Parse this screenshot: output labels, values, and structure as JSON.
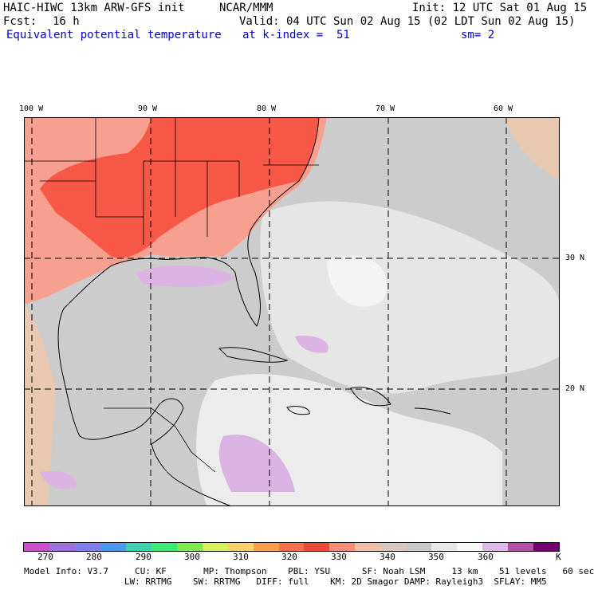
{
  "header": {
    "model": "HAIC-HIWC 13km ARW-GFS init",
    "org": "NCAR/MMM",
    "init": "Init: 12 UTC Sat 01 Aug 15",
    "fcst_label": "Fcst:",
    "fcst_value": "16 h",
    "valid": "Valid: 04 UTC Sun 02 Aug 15 (02 LDT Sun 02 Aug 15)",
    "field": "Equivalent potential temperature",
    "level": "at k-index =  51",
    "smooth": "sm= 2"
  },
  "map": {
    "lon_labels": [
      "100 W",
      "90 W",
      "80 W",
      "70 W",
      "60 W"
    ],
    "lat_labels": [
      "30 N",
      "20 N"
    ],
    "colors": {
      "background": "#cccccc",
      "warm": "#f8a090",
      "hot": "#f85848",
      "light": "#ececec",
      "lavender": "#dcb4e4",
      "tan": "#e8c8b0"
    }
  },
  "colorbar": {
    "labels": [
      "270",
      "280",
      "290",
      "300",
      "310",
      "320",
      "330",
      "340",
      "350",
      "360",
      "K"
    ],
    "colors": [
      "#c850c8",
      "#a070d8",
      "#8080e8",
      "#5098e8",
      "#40d0b0",
      "#40e878",
      "#80e850",
      "#d8f060",
      "#f8d070",
      "#f8a050",
      "#f87050",
      "#f04838",
      "#f89078",
      "#f0c0a8",
      "#d8c8c0",
      "#c8c8c8",
      "#e8e8e8",
      "#f8f8f8",
      "#e0b8e8",
      "#b050a8",
      "#700070"
    ]
  },
  "footer": {
    "line1": "Model Info: V3.7     CU: KF       MP: Thompson    PBL: YSU      SF: Noah LSM     13 km    51 levels   60 sec",
    "line2": "                   LW: RRTMG    SW: RRTMG   DIFF: full    KM: 2D Smagor DAMP: Rayleigh3  SFLAY: MM5"
  }
}
